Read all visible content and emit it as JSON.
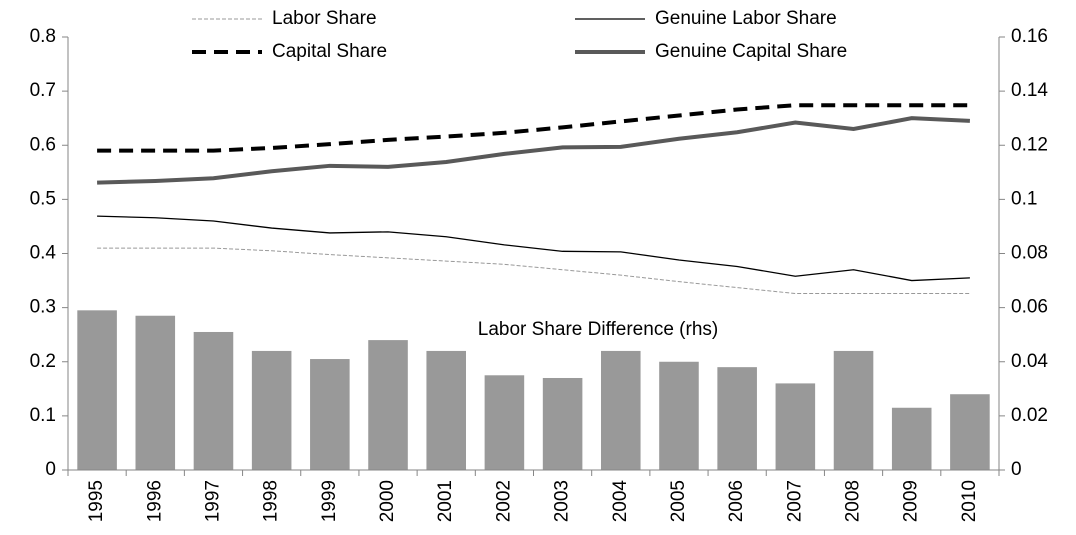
{
  "chart_data": {
    "type": "combo",
    "categories": [
      "1995",
      "1996",
      "1997",
      "1998",
      "1999",
      "2000",
      "2001",
      "2002",
      "2003",
      "2004",
      "2005",
      "2006",
      "2007",
      "2008",
      "2009",
      "2010"
    ],
    "series": [
      {
        "name": "Labor Share",
        "type": "line",
        "color": "#999999",
        "line_width": 1,
        "dashed": true,
        "values": [
          0.41,
          0.41,
          0.41,
          0.405,
          0.398,
          0.392,
          0.386,
          0.38,
          0.37,
          0.36,
          0.348,
          0.337,
          0.326,
          0.326,
          0.326,
          0.326
        ]
      },
      {
        "name": "Genuine Labor Share",
        "type": "line",
        "color": "#000000",
        "line_width": 1.3,
        "dashed": false,
        "values": [
          0.469,
          0.466,
          0.46,
          0.447,
          0.438,
          0.44,
          0.431,
          0.416,
          0.404,
          0.403,
          0.388,
          0.376,
          0.358,
          0.37,
          0.35,
          0.355
        ]
      },
      {
        "name": "Capital Share",
        "type": "line",
        "color": "#000000",
        "line_width": 4,
        "dashed": true,
        "values": [
          0.59,
          0.59,
          0.59,
          0.595,
          0.602,
          0.61,
          0.616,
          0.623,
          0.633,
          0.644,
          0.655,
          0.666,
          0.674,
          0.674,
          0.674,
          0.674
        ]
      },
      {
        "name": "Genuine Capital Share",
        "type": "line",
        "color": "#595959",
        "line_width": 4,
        "dashed": false,
        "values": [
          0.531,
          0.534,
          0.539,
          0.552,
          0.562,
          0.56,
          0.569,
          0.584,
          0.596,
          0.597,
          0.612,
          0.624,
          0.642,
          0.63,
          0.65,
          0.645
        ]
      },
      {
        "name": "Labor Share Difference (rhs)",
        "type": "bar",
        "axis": "y2",
        "color": "#999999",
        "values": [
          0.059,
          0.057,
          0.051,
          0.044,
          0.041,
          0.048,
          0.044,
          0.035,
          0.034,
          0.044,
          0.04,
          0.038,
          0.032,
          0.044,
          0.023,
          0.028
        ]
      }
    ],
    "ylim": [
      0,
      0.8
    ],
    "yticks": [
      0,
      0.1,
      0.2,
      0.3,
      0.4,
      0.5,
      0.6,
      0.7,
      0.8
    ],
    "y2lim": [
      0,
      0.16
    ],
    "y2ticks": [
      0,
      0.02,
      0.04,
      0.06,
      0.08,
      0.1,
      0.12,
      0.14,
      0.16
    ],
    "grid": false
  }
}
